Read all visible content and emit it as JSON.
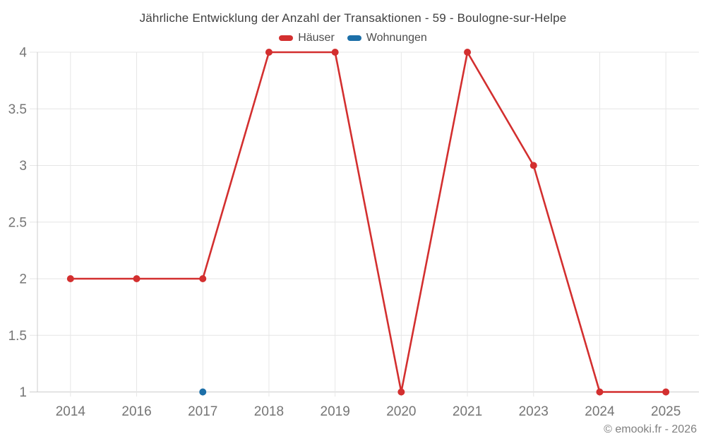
{
  "footer": {
    "copyright": "© emooki.fr - 2026"
  },
  "colors": {
    "background": "#ffffff",
    "grid": "#e6e6e6",
    "axis": "#cccccc",
    "tick_label": "#757575",
    "title_text": "#404040",
    "legend_text": "#4d4d4d",
    "copyright_text": "#808080",
    "series_red": "#d32f2f",
    "series_blue": "#1c6fa8"
  },
  "chart_data": {
    "type": "line",
    "title": "Jährliche Entwicklung der Anzahl der Transaktionen - 59 - Boulogne-sur-Helpe",
    "xlabel": "",
    "ylabel": "",
    "categories": [
      "2014",
      "2016",
      "2017",
      "2018",
      "2019",
      "2020",
      "2021",
      "2023",
      "2024",
      "2025"
    ],
    "series": [
      {
        "name": "Häuser",
        "color": "#d32f2f",
        "values": [
          2,
          2,
          2,
          4,
          4,
          1,
          4,
          3,
          1,
          1
        ]
      },
      {
        "name": "Wohnungen",
        "color": "#1c6fa8",
        "values": [
          null,
          null,
          1,
          null,
          null,
          null,
          null,
          null,
          null,
          null
        ]
      }
    ],
    "ylim": [
      1,
      4
    ],
    "ytick_step": 0.5,
    "ytick_labels": [
      "1",
      "1.5",
      "2",
      "2.5",
      "3",
      "3.5",
      "4"
    ],
    "grid": true,
    "legend_position": "top"
  }
}
